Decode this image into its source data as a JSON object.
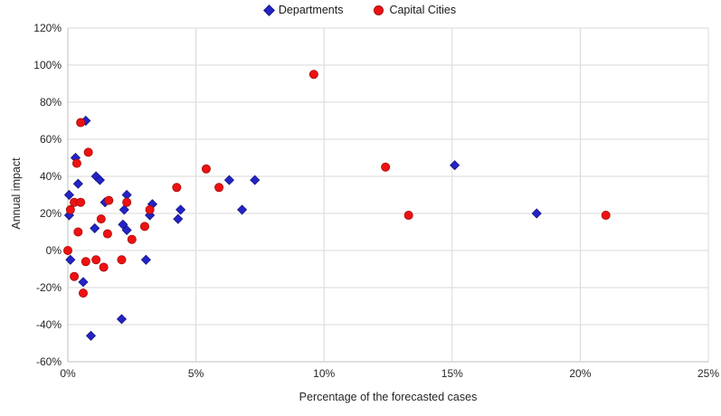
{
  "legend": [
    {
      "label": "Departments",
      "marker": "diamond",
      "color": "#2323C8",
      "edge": "#17177F"
    },
    {
      "label": "Capital Cities",
      "marker": "circle",
      "color": "#EE1111",
      "edge": "#A50D0D"
    }
  ],
  "colors": {
    "gridline": "#D9D9D9",
    "axis_line": "#BFBFBF",
    "tick_text": "#262626"
  },
  "chart_data": {
    "type": "scatter",
    "title": "",
    "xlabel": "Percentage of the forecasted cases",
    "ylabel": "Annual impact",
    "xlim": [
      0,
      25
    ],
    "ylim": [
      -60,
      120
    ],
    "grid": true,
    "legend_position": "top-center",
    "x_tick_values": [
      0,
      5,
      10,
      15,
      20,
      25
    ],
    "x_ticks": [
      "0%",
      "5%",
      "10%",
      "15%",
      "20%",
      "25%"
    ],
    "y_tick_values": [
      -60,
      -40,
      -20,
      0,
      20,
      40,
      60,
      80,
      100,
      120
    ],
    "y_ticks": [
      "-60%",
      "-40%",
      "-20%",
      "0%",
      "20%",
      "40%",
      "60%",
      "80%",
      "100%",
      "120%"
    ],
    "series": [
      {
        "name": "Departments",
        "marker": "diamond",
        "color": "#2323C8",
        "edge": "#17177F",
        "points": [
          [
            0.05,
            30
          ],
          [
            0.05,
            19
          ],
          [
            0.1,
            -5
          ],
          [
            0.3,
            50
          ],
          [
            0.4,
            36
          ],
          [
            0.6,
            -17
          ],
          [
            0.7,
            70
          ],
          [
            0.9,
            -46
          ],
          [
            1.05,
            12
          ],
          [
            1.1,
            40
          ],
          [
            1.25,
            38
          ],
          [
            1.45,
            26
          ],
          [
            2.1,
            -37
          ],
          [
            2.15,
            14
          ],
          [
            2.2,
            22
          ],
          [
            2.3,
            30
          ],
          [
            2.3,
            11
          ],
          [
            3.05,
            -5
          ],
          [
            3.2,
            19
          ],
          [
            3.3,
            25
          ],
          [
            4.3,
            17
          ],
          [
            4.4,
            22
          ],
          [
            6.3,
            38
          ],
          [
            6.8,
            22
          ],
          [
            7.3,
            38
          ],
          [
            15.1,
            46
          ],
          [
            18.3,
            20
          ]
        ]
      },
      {
        "name": "Capital Cities",
        "marker": "circle",
        "color": "#EE1111",
        "edge": "#A50D0D",
        "points": [
          [
            0.0,
            0
          ],
          [
            0.1,
            22
          ],
          [
            0.25,
            26
          ],
          [
            0.25,
            -14
          ],
          [
            0.35,
            47
          ],
          [
            0.4,
            10
          ],
          [
            0.5,
            69
          ],
          [
            0.5,
            26
          ],
          [
            0.6,
            -23
          ],
          [
            0.7,
            -6
          ],
          [
            0.8,
            53
          ],
          [
            1.1,
            -5
          ],
          [
            1.3,
            17
          ],
          [
            1.4,
            -9
          ],
          [
            1.55,
            9
          ],
          [
            1.6,
            27
          ],
          [
            2.1,
            -5
          ],
          [
            2.3,
            26
          ],
          [
            2.5,
            6
          ],
          [
            3.0,
            13
          ],
          [
            3.2,
            22
          ],
          [
            4.25,
            34
          ],
          [
            5.4,
            44
          ],
          [
            5.9,
            34
          ],
          [
            9.6,
            95
          ],
          [
            12.4,
            45
          ],
          [
            13.3,
            19
          ],
          [
            21.0,
            19
          ]
        ]
      }
    ]
  }
}
